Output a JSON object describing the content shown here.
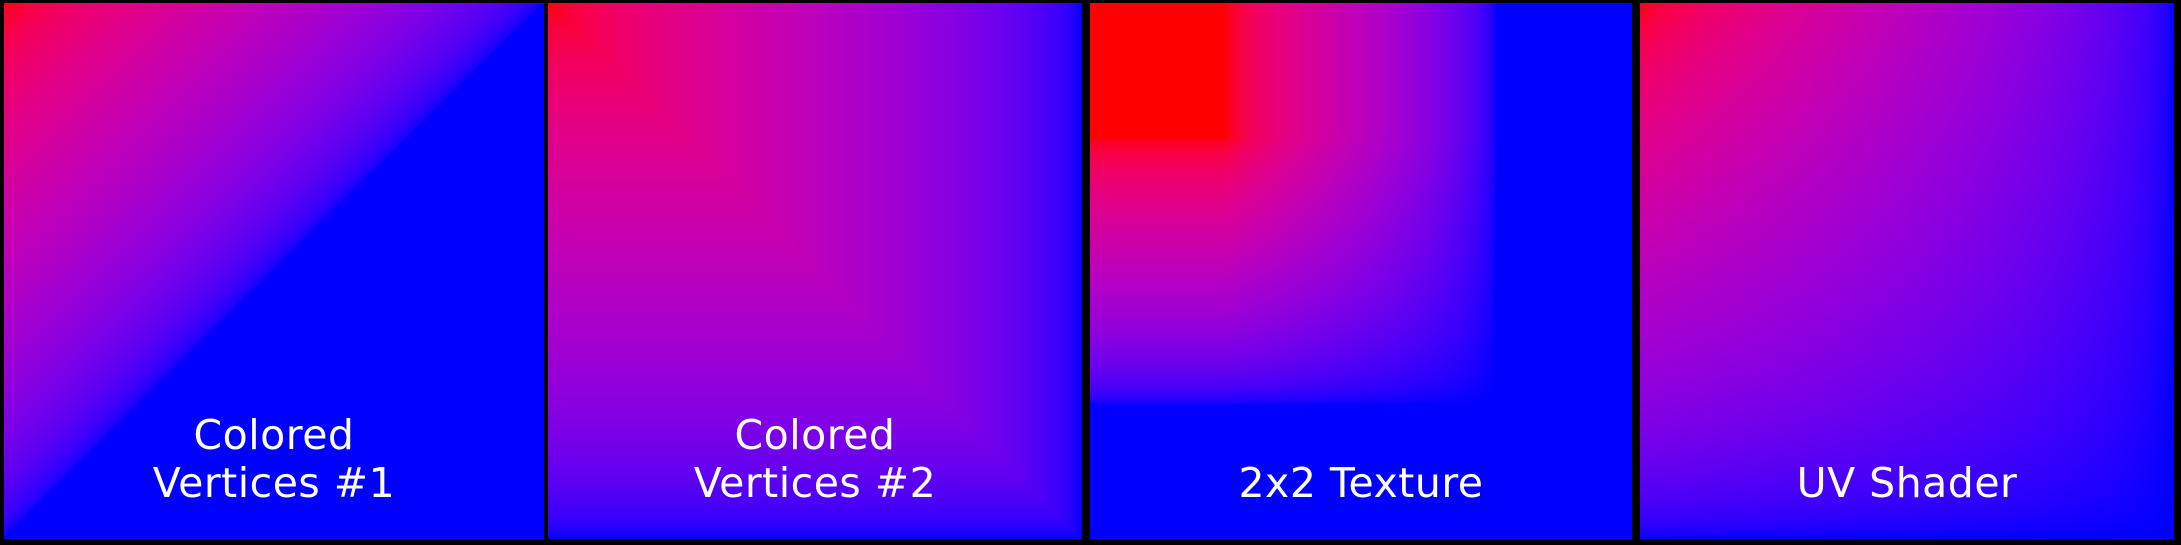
{
  "figure": {
    "background_color": "#000000",
    "label_color": "#ffffff",
    "interpolation_colorspace": "linear-to-srgb",
    "panels": [
      {
        "id": "colored-vertices-1",
        "label_lines": [
          "Colored",
          "Vertices #1"
        ],
        "mode": "triangles-bltr",
        "corners": {
          "tl": "#ff0000",
          "tr": "#0000ff",
          "bl": "#0000ff",
          "br": "#0000ff"
        }
      },
      {
        "id": "colored-vertices-2",
        "label_lines": [
          "Colored",
          "Vertices #2"
        ],
        "mode": "triangles-tlbr",
        "corners": {
          "tl": "#ff0000",
          "tr": "#0000ff",
          "bl": "#0000ff",
          "br": "#0000ff"
        }
      },
      {
        "id": "2x2-texture",
        "label_lines": [
          "2x2 Texture"
        ],
        "mode": "texture-bilinear",
        "texel_centers": [
          0.25,
          0.75
        ],
        "corners": {
          "tl": "#ff0000",
          "tr": "#0000ff",
          "bl": "#0000ff",
          "br": "#0000ff"
        }
      },
      {
        "id": "uv-shader",
        "label_lines": [
          "UV Shader"
        ],
        "mode": "bilinear",
        "corners": {
          "tl": "#ff0000",
          "tr": "#0000ff",
          "bl": "#0000ff",
          "br": "#0000ff"
        }
      }
    ]
  }
}
